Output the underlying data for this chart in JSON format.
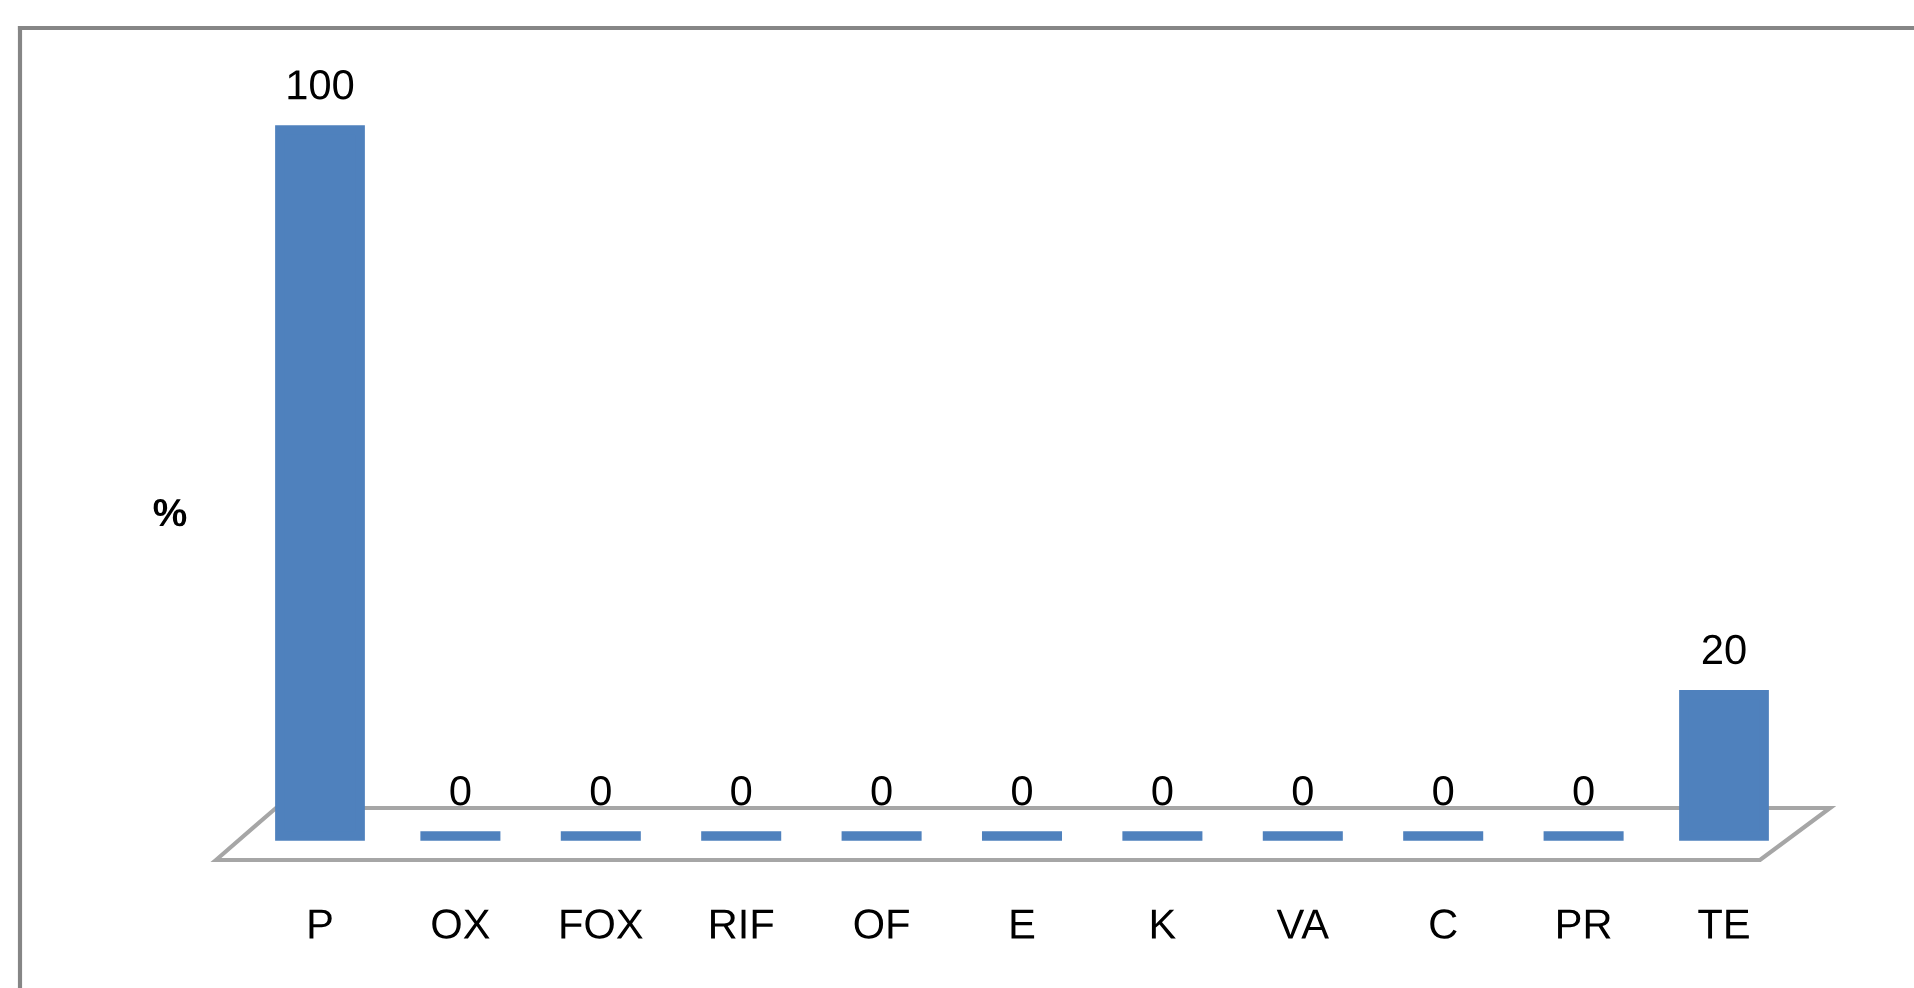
{
  "chart_data": {
    "type": "bar",
    "ylabel": "%",
    "categories": [
      "P",
      "OX",
      "FOX",
      "RIF",
      "OF",
      "E",
      "K",
      "VA",
      "C",
      "PR",
      "TE"
    ],
    "values": [
      100,
      0,
      0,
      0,
      0,
      0,
      0,
      0,
      0,
      0,
      20
    ],
    "color": "#4f81bd",
    "data_labels": true
  }
}
